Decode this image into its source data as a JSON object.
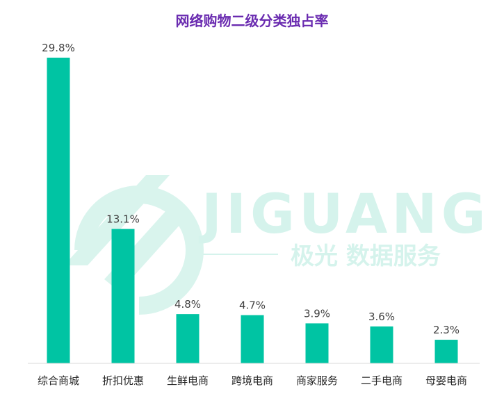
{
  "chart_data": {
    "type": "bar",
    "title": "网络购物二级分类独占率",
    "categories": [
      "综合商城",
      "折扣优惠",
      "生鲜电商",
      "跨境电商",
      "商家服务",
      "二手电商",
      "母婴电商"
    ],
    "values": [
      29.8,
      13.1,
      4.8,
      4.7,
      3.9,
      3.6,
      2.3
    ],
    "value_labels": [
      "29.8%",
      "13.1%",
      "4.8%",
      "4.7%",
      "3.9%",
      "3.6%",
      "2.3%"
    ],
    "xlabel": "",
    "ylabel": "",
    "ylim": [
      0,
      29.8
    ],
    "grid": false,
    "bar_color": "#00c4a3"
  },
  "watermark": {
    "brand": "JIGUANG",
    "subtitle": "极光 数据服务",
    "color": "#d5f3ec"
  }
}
